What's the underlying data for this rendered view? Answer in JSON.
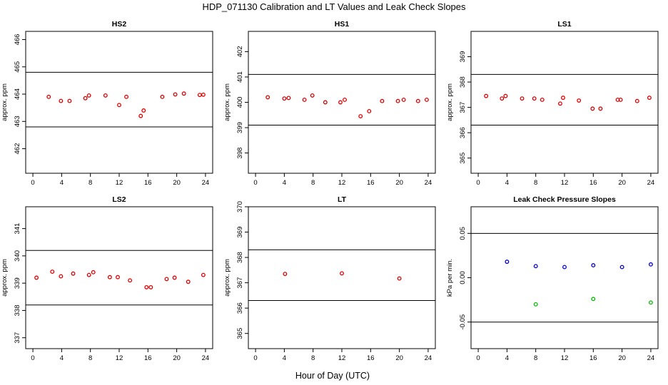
{
  "title": "HDP_071130  Calibration and LT Values and Leak Check Slopes",
  "xlabel": "Hour of Day (UTC)",
  "colors": {
    "red": "#dd0000",
    "blue": "#0000cc",
    "green": "#00bb00",
    "axis": "#000000"
  },
  "chart_data": [
    {
      "type": "scatter",
      "title": "HS2",
      "ylabel": "approx. ppm",
      "xlim": [
        -1,
        25
      ],
      "ylim": [
        461.1,
        466.3
      ],
      "xticks": [
        0,
        4,
        8,
        12,
        16,
        20,
        24
      ],
      "yticks": [
        462,
        463,
        464,
        465,
        466
      ],
      "hlines": [
        462.8,
        464.8
      ],
      "series": [
        {
          "color": "red",
          "x": [
            2.2,
            3.9,
            5.1,
            7.3,
            7.8,
            10.1,
            12.0,
            13.0,
            15.0,
            15.4,
            18.0,
            19.8,
            21.0,
            23.2,
            23.7
          ],
          "y": [
            463.9,
            463.75,
            463.75,
            463.85,
            463.95,
            463.95,
            463.6,
            463.9,
            463.2,
            463.4,
            463.9,
            463.99,
            464.02,
            463.97,
            463.98
          ]
        }
      ]
    },
    {
      "type": "scatter",
      "title": "HS1",
      "ylabel": "approx. ppm",
      "xlim": [
        -1,
        25
      ],
      "ylim": [
        397.2,
        402.8
      ],
      "xticks": [
        0,
        4,
        8,
        12,
        16,
        20,
        24
      ],
      "yticks": [
        398,
        399,
        400,
        401,
        402
      ],
      "hlines": [
        399.1,
        401.1
      ],
      "series": [
        {
          "color": "red",
          "x": [
            1.7,
            4.0,
            4.6,
            6.8,
            7.9,
            9.7,
            11.8,
            12.4,
            14.6,
            15.8,
            17.6,
            19.8,
            20.6,
            22.6,
            23.8
          ],
          "y": [
            400.2,
            400.15,
            400.17,
            400.1,
            400.27,
            400.0,
            400.0,
            400.1,
            399.45,
            399.65,
            400.05,
            400.05,
            400.1,
            400.05,
            400.1
          ]
        }
      ]
    },
    {
      "type": "scatter",
      "title": "LS1",
      "ylabel": "approx. ppm",
      "xlim": [
        -1,
        25
      ],
      "ylim": [
        364.4,
        370.0
      ],
      "xticks": [
        0,
        4,
        8,
        12,
        16,
        20,
        24
      ],
      "yticks": [
        365,
        366,
        367,
        368,
        369
      ],
      "hlines": [
        366.3,
        368.3
      ],
      "series": [
        {
          "color": "red",
          "x": [
            1.1,
            3.3,
            3.8,
            6.1,
            7.8,
            8.9,
            11.4,
            11.8,
            14.0,
            15.9,
            17.0,
            19.4,
            19.8,
            22.1,
            23.8
          ],
          "y": [
            367.45,
            367.35,
            367.45,
            367.35,
            367.35,
            367.3,
            367.15,
            367.38,
            367.27,
            366.95,
            366.95,
            367.3,
            367.3,
            367.25,
            367.38
          ]
        }
      ]
    },
    {
      "type": "scatter",
      "title": "LS2",
      "ylabel": "approx. ppm",
      "xlim": [
        -1,
        25
      ],
      "ylim": [
        336.6,
        341.8
      ],
      "xticks": [
        0,
        4,
        8,
        12,
        16,
        20,
        24
      ],
      "yticks": [
        337,
        338,
        339,
        340,
        341
      ],
      "hlines": [
        338.2,
        340.2
      ],
      "series": [
        {
          "color": "red",
          "x": [
            0.5,
            2.7,
            3.9,
            5.6,
            7.8,
            8.4,
            10.7,
            11.8,
            13.5,
            15.8,
            16.4,
            18.6,
            19.7,
            21.6,
            23.7
          ],
          "y": [
            339.2,
            339.42,
            339.25,
            339.35,
            339.3,
            339.4,
            339.22,
            339.22,
            339.1,
            338.85,
            338.85,
            339.15,
            339.2,
            339.05,
            339.3
          ]
        }
      ]
    },
    {
      "type": "scatter",
      "title": "LT",
      "ylabel": "approx. ppm",
      "xlim": [
        -1,
        25
      ],
      "ylim": [
        364.4,
        370.0
      ],
      "xticks": [
        0,
        4,
        8,
        12,
        16,
        20,
        24
      ],
      "yticks": [
        365,
        366,
        367,
        368,
        369,
        370
      ],
      "hlines": [
        366.3,
        368.3
      ],
      "series": [
        {
          "color": "red",
          "x": [
            4.1,
            12.0,
            20.0
          ],
          "y": [
            367.35,
            367.37,
            367.17
          ]
        }
      ]
    },
    {
      "type": "scatter",
      "title": "Leak Check Pressure Slopes",
      "ylabel": "kPa per min.",
      "xlim": [
        -1,
        25
      ],
      "ylim": [
        -0.08,
        0.08
      ],
      "xticks": [
        0,
        4,
        8,
        12,
        16,
        20,
        24
      ],
      "yticks": [
        -0.05,
        0.0,
        0.05
      ],
      "yticklabels": [
        "-0.05",
        "0.00",
        "0.05"
      ],
      "hlines": [
        -0.05,
        0.05
      ],
      "series": [
        {
          "color": "blue",
          "x": [
            4.0,
            8.0,
            12.0,
            16.0,
            20.0,
            24.0
          ],
          "y": [
            0.018,
            0.013,
            0.012,
            0.014,
            0.012,
            0.015
          ]
        },
        {
          "color": "green",
          "x": [
            8.0,
            16.0,
            24.0
          ],
          "y": [
            -0.03,
            -0.024,
            -0.028
          ]
        }
      ]
    }
  ]
}
